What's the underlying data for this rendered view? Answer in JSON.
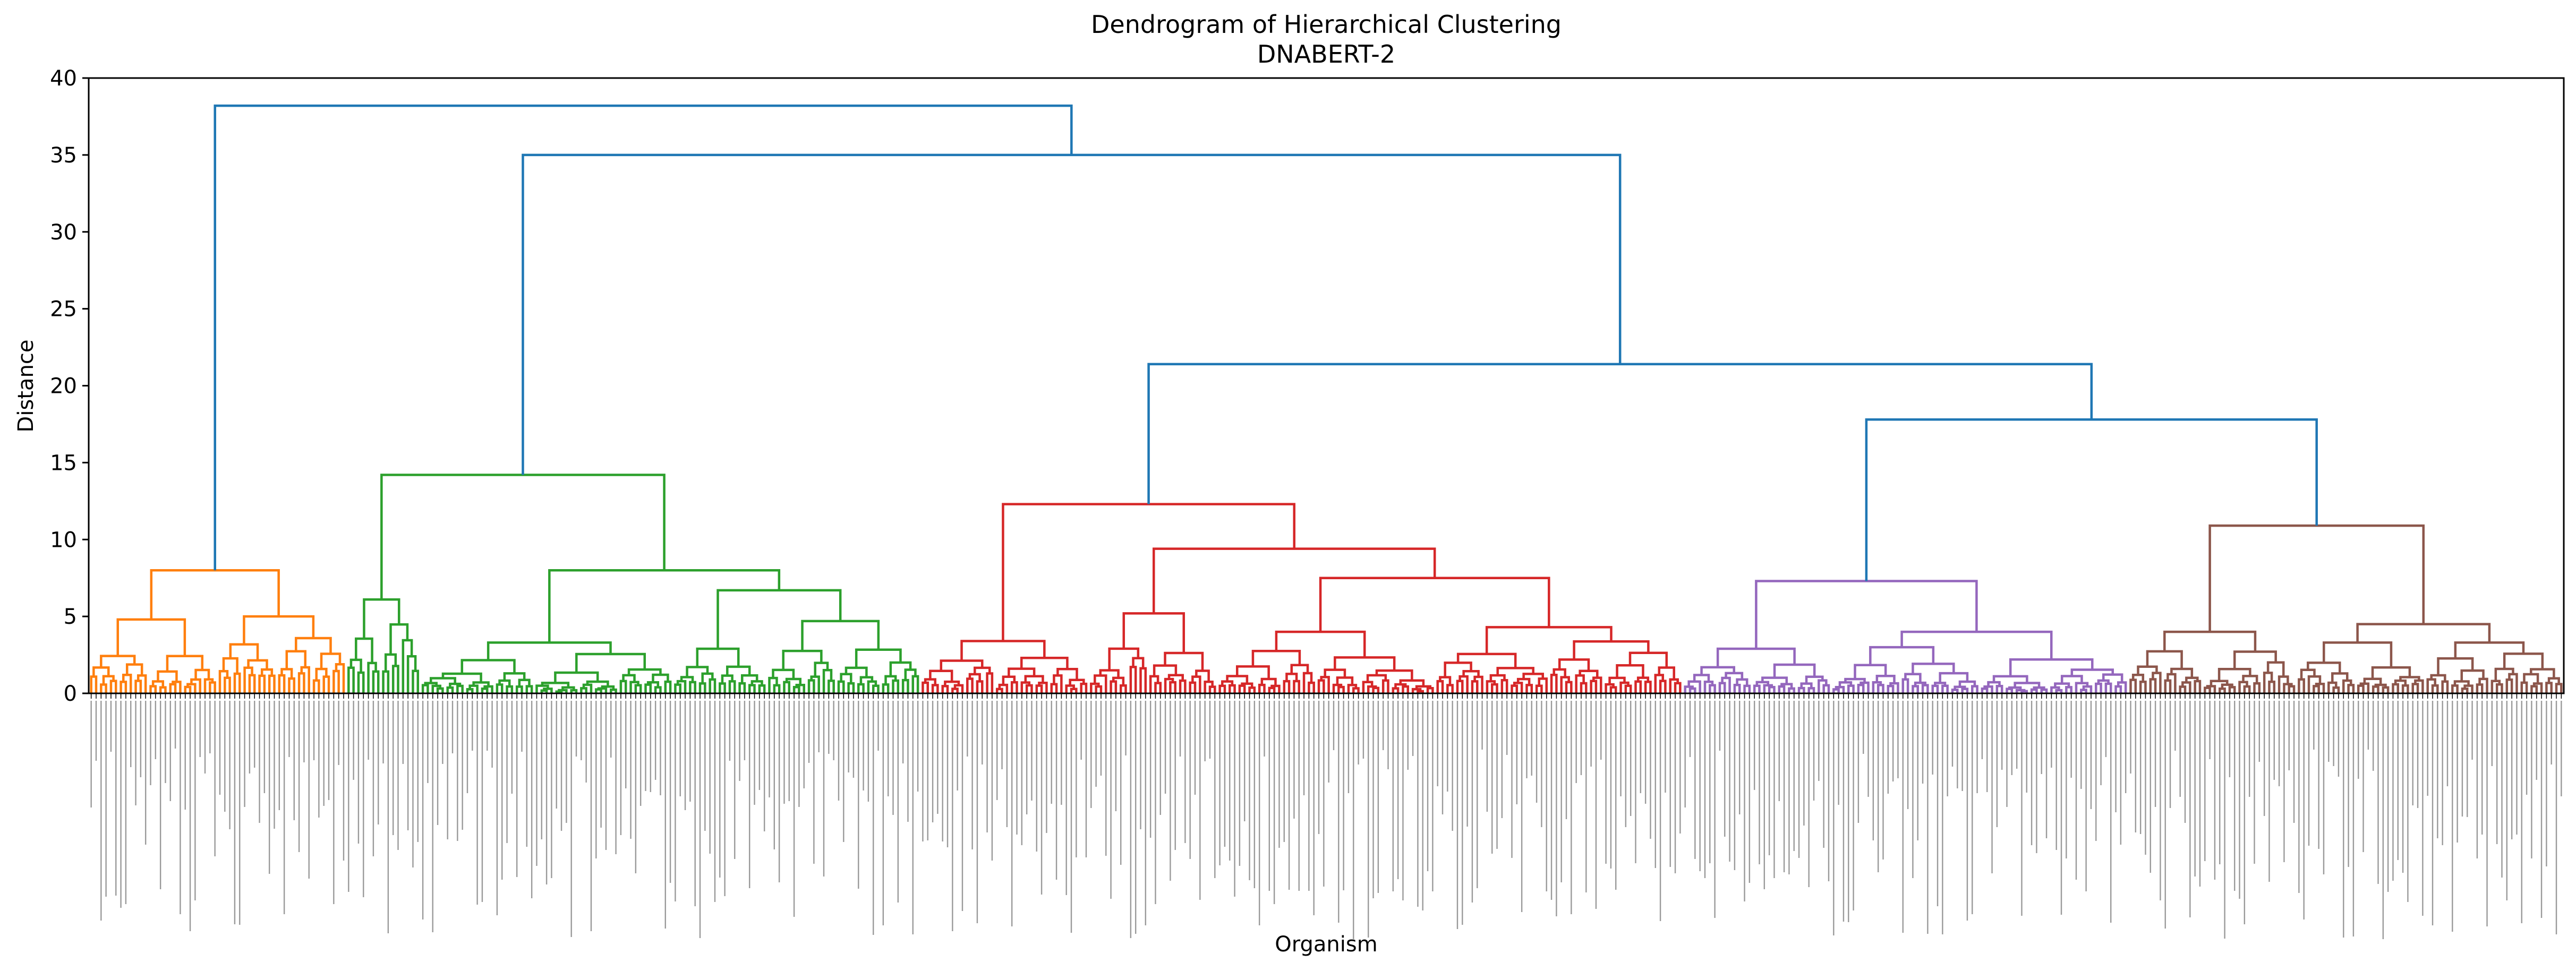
{
  "chart_data": {
    "type": "dendrogram",
    "title": "Dendrogram of Hierarchical Clustering",
    "subtitle": "DNABERT-2",
    "xlabel": "Organism",
    "ylabel": "Distance",
    "ylim": [
      0,
      40
    ],
    "yticks": [
      0,
      5,
      10,
      15,
      20,
      25,
      30,
      35,
      40
    ],
    "grid": false,
    "leaf_count": 500,
    "leaf_labels_legible": false,
    "top_color": "#1f77b4",
    "clusters": [
      {
        "color": "#ff7f0e",
        "leaves": [
          0,
          52
        ],
        "root_height": 8.0,
        "merges": [
          {
            "span": [
              0,
              26
            ],
            "height": 4.8
          },
          {
            "span": [
              26,
              52
            ],
            "height": 5.0
          }
        ]
      },
      {
        "color": "#2ca02c",
        "leaves": [
          52,
          168
        ],
        "root_height": 14.2,
        "merges": [
          {
            "span": [
              52,
              67
            ],
            "height": 6.1
          },
          {
            "span": [
              67,
              168
            ],
            "height": 8.0
          },
          {
            "span": [
              67,
              118
            ],
            "height": 3.3
          },
          {
            "span": [
              118,
              168
            ],
            "height": 6.7
          },
          {
            "span": [
              118,
              137
            ],
            "height": 2.9
          },
          {
            "span": [
              137,
              168
            ],
            "height": 4.7
          }
        ]
      },
      {
        "color": "#d62728",
        "leaves": [
          168,
          322
        ],
        "root_height": 12.3,
        "merges": [
          {
            "span": [
              168,
              202
            ],
            "height": 3.4
          },
          {
            "span": [
              202,
              322
            ],
            "height": 9.4
          },
          {
            "span": [
              202,
              228
            ],
            "height": 5.2
          },
          {
            "span": [
              228,
              322
            ],
            "height": 7.5
          },
          {
            "span": [
              228,
              272
            ],
            "height": 4.0
          },
          {
            "span": [
              272,
              322
            ],
            "height": 4.3
          }
        ]
      },
      {
        "color": "#9467bd",
        "leaves": [
          322,
          412
        ],
        "root_height": 7.3,
        "merges": [
          {
            "span": [
              322,
              352
            ],
            "height": 2.9
          },
          {
            "span": [
              352,
              412
            ],
            "height": 4.0
          },
          {
            "span": [
              352,
              382
            ],
            "height": 3.0
          },
          {
            "span": [
              382,
              412
            ],
            "height": 2.2
          }
        ]
      },
      {
        "color": "#8c564b",
        "leaves": [
          412,
          500
        ],
        "root_height": 10.9,
        "merges": [
          {
            "span": [
              412,
              446
            ],
            "height": 4.0
          },
          {
            "span": [
              446,
              500
            ],
            "height": 4.5
          },
          {
            "span": [
              446,
              472
            ],
            "height": 3.3
          },
          {
            "span": [
              472,
              500
            ],
            "height": 3.3
          }
        ]
      }
    ],
    "top_links": [
      {
        "join": [
          "cluster:3",
          "cluster:4"
        ],
        "height": 17.8
      },
      {
        "join": [
          "cluster:2",
          "link:0"
        ],
        "height": 21.4
      },
      {
        "join": [
          "cluster:1",
          "link:1"
        ],
        "height": 35.0
      },
      {
        "join": [
          "cluster:0",
          "link:2"
        ],
        "height": 38.2
      }
    ]
  }
}
